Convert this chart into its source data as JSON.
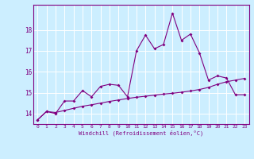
{
  "title": "",
  "xlabel": "Windchill (Refroidissement éolien,°C)",
  "ylabel": "",
  "bg_color": "#cceeff",
  "line_color": "#800080",
  "xlim": [
    -0.5,
    23.5
  ],
  "ylim": [
    13.5,
    19.2
  ],
  "yticks": [
    14,
    15,
    16,
    17,
    18
  ],
  "xticks": [
    0,
    1,
    2,
    3,
    4,
    5,
    6,
    7,
    8,
    9,
    10,
    11,
    12,
    13,
    14,
    15,
    16,
    17,
    18,
    19,
    20,
    21,
    22,
    23
  ],
  "series1_x": [
    0,
    1,
    2,
    3,
    4,
    5,
    6,
    7,
    8,
    9,
    10,
    11,
    12,
    13,
    14,
    15,
    16,
    17,
    18,
    19,
    20,
    21,
    22,
    23
  ],
  "series1_y": [
    13.7,
    14.1,
    14.0,
    14.6,
    14.6,
    15.1,
    14.8,
    15.3,
    15.4,
    15.35,
    14.8,
    17.0,
    17.75,
    17.1,
    17.3,
    18.8,
    17.5,
    17.8,
    16.9,
    15.6,
    15.8,
    15.7,
    14.9,
    14.9
  ],
  "series2_x": [
    0,
    1,
    2,
    3,
    4,
    5,
    6,
    7,
    8,
    9,
    10,
    11,
    12,
    13,
    14,
    15,
    16,
    17,
    18,
    19,
    20,
    21,
    22,
    23
  ],
  "series2_y": [
    13.7,
    14.1,
    14.05,
    14.15,
    14.25,
    14.35,
    14.42,
    14.5,
    14.58,
    14.65,
    14.72,
    14.78,
    14.83,
    14.88,
    14.93,
    14.97,
    15.02,
    15.08,
    15.15,
    15.25,
    15.4,
    15.52,
    15.6,
    15.68
  ]
}
